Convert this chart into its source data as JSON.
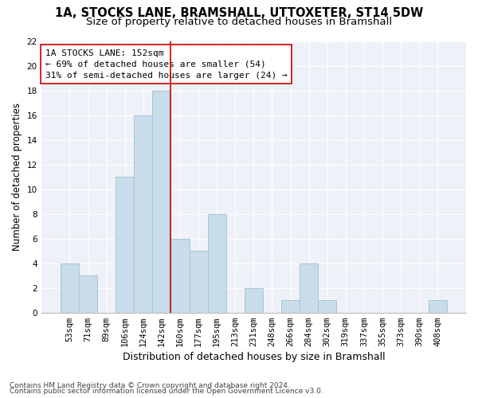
{
  "title1": "1A, STOCKS LANE, BRAMSHALL, UTTOXETER, ST14 5DW",
  "title2": "Size of property relative to detached houses in Bramshall",
  "xlabel": "Distribution of detached houses by size in Bramshall",
  "ylabel": "Number of detached properties",
  "bar_labels": [
    "53sqm",
    "71sqm",
    "89sqm",
    "106sqm",
    "124sqm",
    "142sqm",
    "160sqm",
    "177sqm",
    "195sqm",
    "213sqm",
    "231sqm",
    "248sqm",
    "266sqm",
    "284sqm",
    "302sqm",
    "319sqm",
    "337sqm",
    "355sqm",
    "373sqm",
    "390sqm",
    "408sqm"
  ],
  "bar_heights": [
    4,
    3,
    0,
    11,
    16,
    18,
    6,
    5,
    8,
    0,
    2,
    0,
    1,
    4,
    1,
    0,
    0,
    0,
    0,
    0,
    1
  ],
  "bar_color": "#c9dcea",
  "bar_edgecolor": "#a8c4d8",
  "vline_x": 5.5,
  "vline_color": "#cc0000",
  "annotation_line1": "1A STOCKS LANE: 152sqm",
  "annotation_line2": "← 69% of detached houses are smaller (54)",
  "annotation_line3": "31% of semi-detached houses are larger (24) →",
  "annotation_box_color": "#cc0000",
  "ylim": [
    0,
    22
  ],
  "yticks": [
    0,
    2,
    4,
    6,
    8,
    10,
    12,
    14,
    16,
    18,
    20,
    22
  ],
  "footer1": "Contains HM Land Registry data © Crown copyright and database right 2024.",
  "footer2": "Contains public sector information licensed under the Open Government Licence v3.0.",
  "background_color": "#eef2f8",
  "grid_color": "#ffffff",
  "title1_fontsize": 10.5,
  "title2_fontsize": 9.5,
  "xlabel_fontsize": 9,
  "ylabel_fontsize": 8.5,
  "tick_fontsize": 7.5,
  "annotation_fontsize": 8,
  "footer_fontsize": 6.5
}
